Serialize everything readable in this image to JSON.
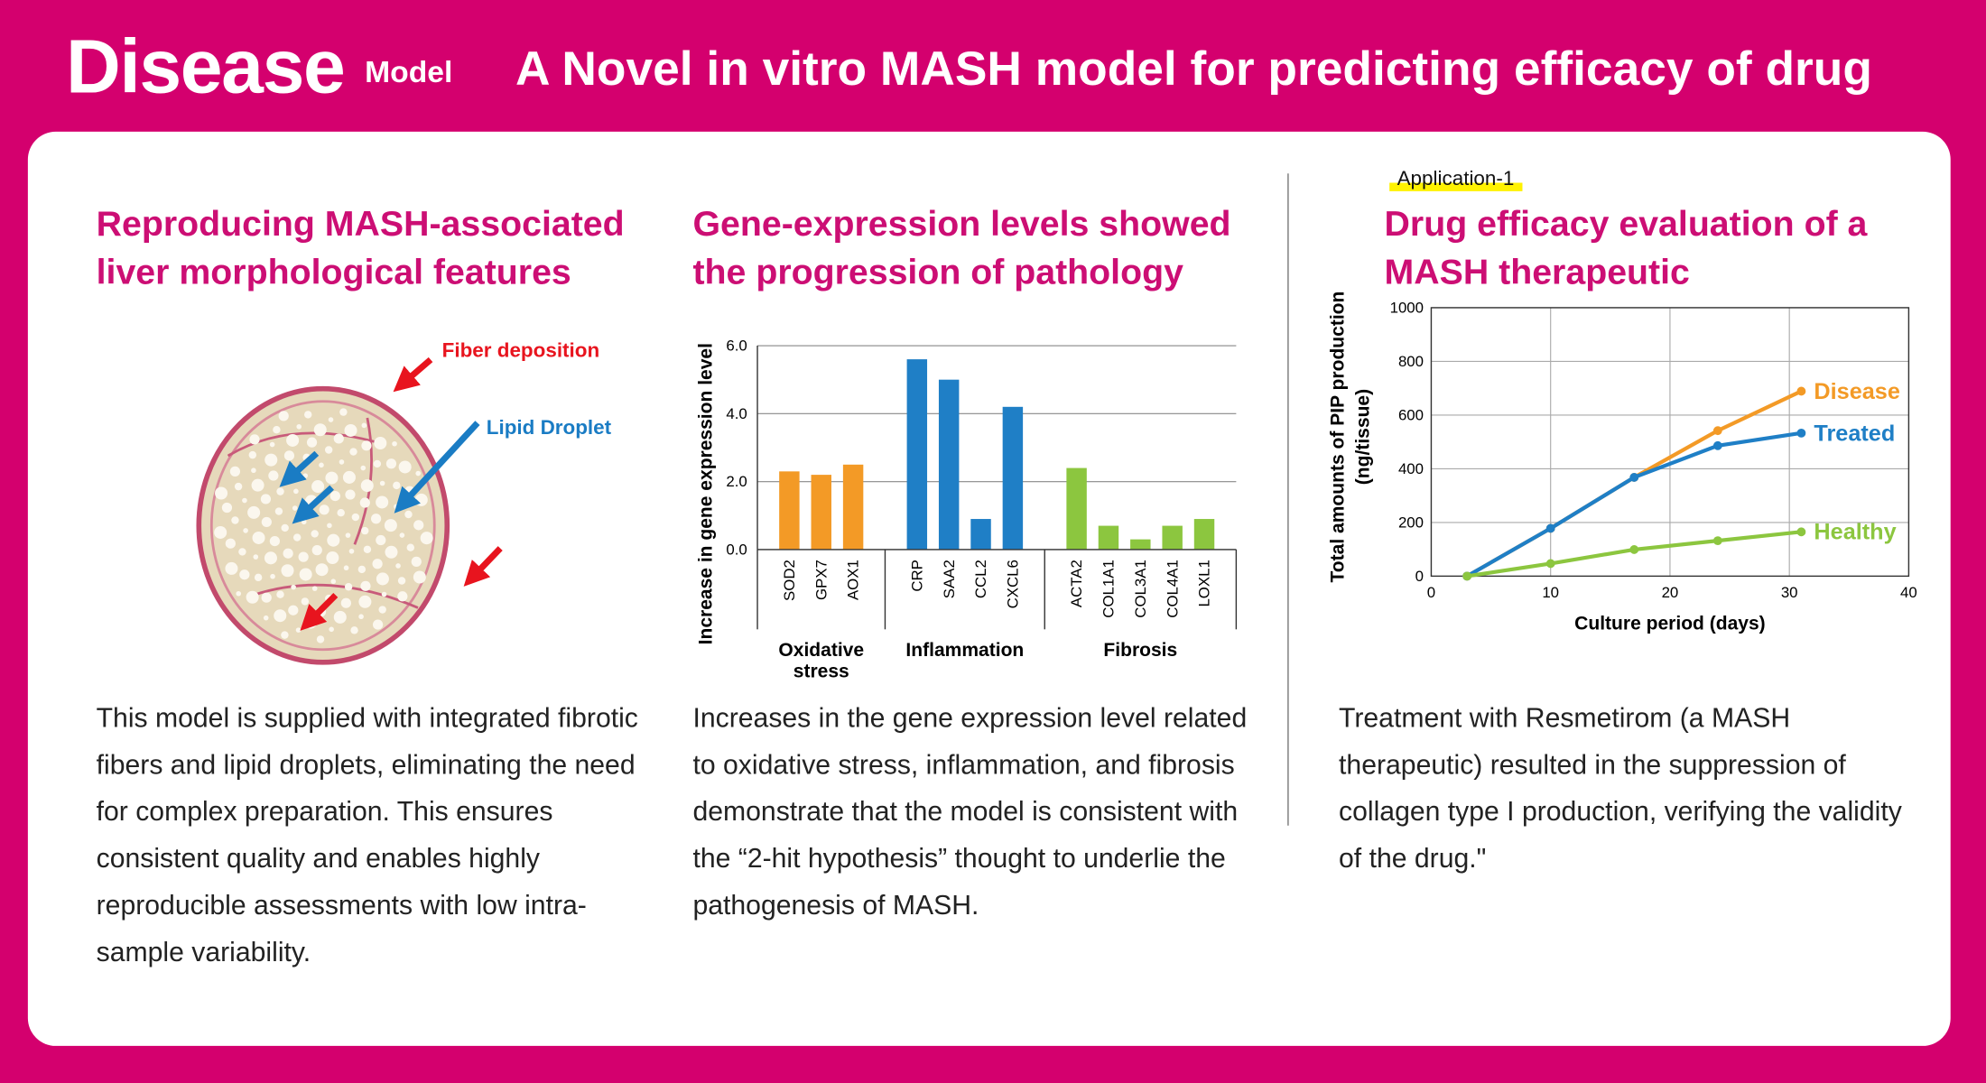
{
  "header": {
    "title": "Disease",
    "title_tag": "Model",
    "subtitle": "A Novel in vitro MASH model for predicting efficacy of drug"
  },
  "panels": [
    {
      "heading": "Reproducing MASH-associated liver morphological features",
      "image_labels": [
        "Fiber deposition",
        "Lipid Droplet"
      ],
      "body": "This model is supplied with integrated fibrotic fibers and lipid droplets, eliminating the need for complex preparation. This ensures consistent quality and enables highly reproducible assessments with low intra-sample variability."
    },
    {
      "heading": "Gene-expression levels showed the progression of pathology",
      "chart": {
        "type": "bar",
        "ylabel": "Increase in gene expression level",
        "ylim": [
          0,
          6
        ],
        "yticks": [
          {
            "value": 0,
            "label": "0.0"
          },
          {
            "value": 2,
            "label": "2.0"
          },
          {
            "value": 4,
            "label": "4.0"
          },
          {
            "value": 6,
            "label": "6.0"
          }
        ],
        "groups": [
          {
            "name": "Oxidative stress",
            "color": "#f39a26",
            "categories": [
              "SOD2",
              "GPX7",
              "AOX1"
            ],
            "values": [
              2.3,
              2.2,
              2.5
            ]
          },
          {
            "name": "Inflammation",
            "color": "#1f7fc6",
            "categories": [
              "CRP",
              "SAA2",
              "CCL2",
              "CXCL6"
            ],
            "values": [
              5.6,
              5.0,
              0.9,
              4.2
            ]
          },
          {
            "name": "Fibrosis",
            "color": "#8cc63f",
            "categories": [
              "ACTA2",
              "COL1A1",
              "COL3A1",
              "COL4A1",
              "LOXL1"
            ],
            "values": [
              2.4,
              0.7,
              0.3,
              0.7,
              0.9
            ]
          }
        ]
      },
      "body": "Increases in the gene expression level related to oxidative stress, inflammation, and fibrosis demonstrate that the model is consistent with the “2-hit hypothesis” thought to underlie the pathogenesis of MASH."
    },
    {
      "tag": "Application-1",
      "heading": "Drug efficacy evaluation of a MASH therapeutic",
      "chart": {
        "type": "line",
        "ylabel": [
          "Total amounts of PIP production",
          "(ng/tissue)"
        ],
        "xlabel": "Culture period (days)",
        "xlim": [
          0,
          40
        ],
        "xticks": [
          0,
          10,
          20,
          30,
          40
        ],
        "ylim": [
          0,
          1000
        ],
        "yticks": [
          0,
          200,
          400,
          600,
          800,
          1000
        ],
        "grid": true,
        "x": [
          3,
          10,
          17,
          24,
          31
        ],
        "series": [
          {
            "name": "Disease",
            "color": "#f39a26",
            "values": [
              0,
              178,
              368,
              542,
              689
            ]
          },
          {
            "name": "Treated",
            "color": "#1f7fc6",
            "values": [
              0,
              178,
              368,
              486,
              533
            ]
          },
          {
            "name": "Healthy",
            "color": "#8cc63f",
            "values": [
              0,
              47,
              99,
              132,
              165
            ]
          }
        ]
      },
      "body": "Treatment with Resmetirom (a MASH therapeutic) resulted in the suppression of collagen type I production, verifying the validity of the drug.\""
    }
  ]
}
